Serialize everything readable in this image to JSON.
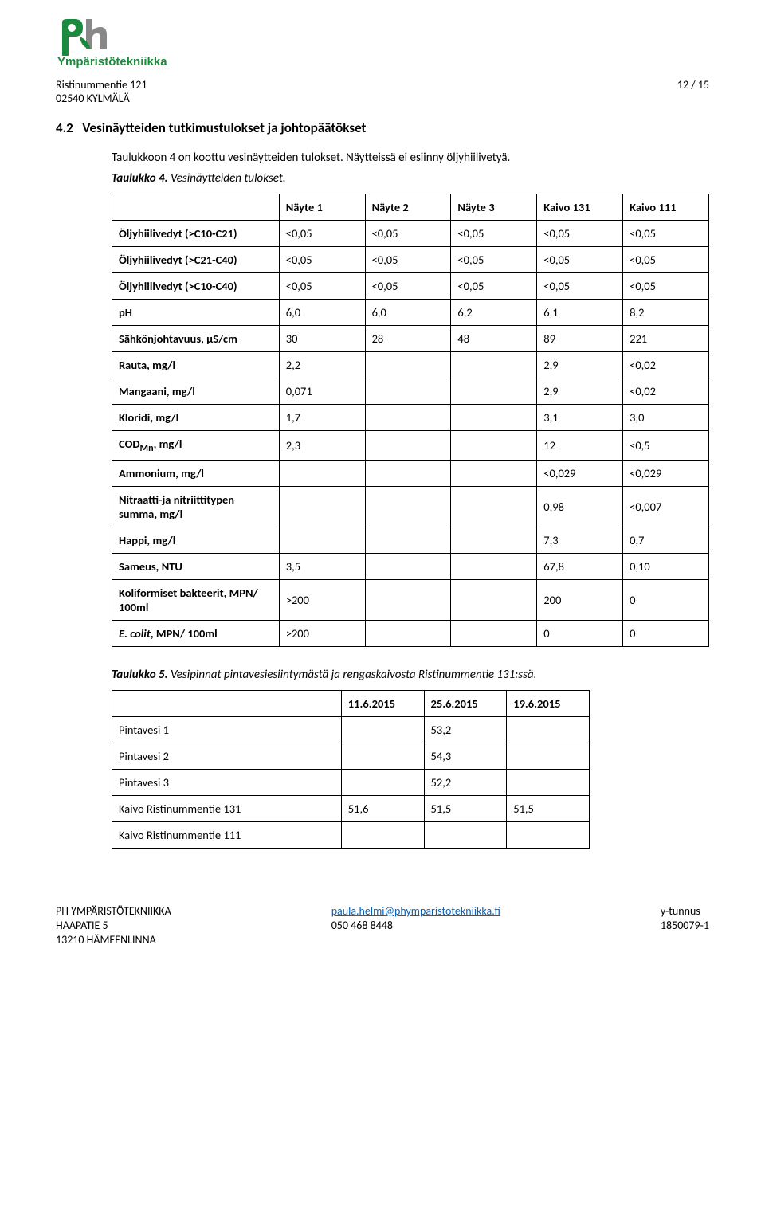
{
  "header": {
    "address_line1": "Ristinummentie 121",
    "address_line2": "02540 KYLMÄLÄ",
    "page_num": "12 / 15"
  },
  "logo": {
    "p_color": "#1a8a3c",
    "h_color": "#888888",
    "sub_text": "Ympäristötekniikka",
    "sub_color": "#1a8a3c"
  },
  "section": {
    "number": "4.2",
    "title": "Vesinäytteiden tutkimustulokset ja johtopäätökset"
  },
  "intro": {
    "line1": "Taulukkoon 4 on koottu vesinäytteiden tulokset. Näytteissä ei esiinny öljyhiilivetyä."
  },
  "table4": {
    "caption_label": "Taulukko 4.",
    "caption_text": " Vesinäytteiden tulokset.",
    "headers": [
      "",
      "Näyte 1",
      "Näyte 2",
      "Näyte 3",
      "Kaivo 131",
      "Kaivo 111"
    ],
    "rows": [
      {
        "label": "Öljyhiilivedyt (>C10-C21)",
        "cells": [
          "<0,05",
          "<0,05",
          "<0,05",
          "<0,05",
          "<0,05"
        ]
      },
      {
        "label": "Öljyhiilivedyt (>C21-C40)",
        "cells": [
          "<0,05",
          "<0,05",
          "<0,05",
          "<0,05",
          "<0,05"
        ]
      },
      {
        "label": "Öljyhiilivedyt (>C10-C40)",
        "cells": [
          "<0,05",
          "<0,05",
          "<0,05",
          "<0,05",
          "<0,05"
        ]
      },
      {
        "label": "pH",
        "cells": [
          "6,0",
          "6,0",
          "6,2",
          "6,1",
          "8,2"
        ]
      },
      {
        "label": "Sähkönjohtavuus, µS/cm",
        "cells": [
          "30",
          "28",
          "48",
          "89",
          "221"
        ]
      },
      {
        "label": "Rauta, mg/l",
        "cells": [
          "2,2",
          "",
          "",
          "2,9",
          "<0,02"
        ]
      },
      {
        "label": "Mangaani, mg/l",
        "cells": [
          "0,071",
          "",
          "",
          "2,9",
          "<0,02"
        ]
      },
      {
        "label": "Kloridi, mg/l",
        "cells": [
          "1,7",
          "",
          "",
          "3,1",
          "3,0"
        ]
      },
      {
        "label": "CODMn, mg/l",
        "sub": "Mn",
        "cells": [
          "2,3",
          "",
          "",
          "12",
          "<0,5"
        ]
      },
      {
        "label": "Ammonium, mg/l",
        "cells": [
          "",
          "",
          "",
          "<0,029",
          "<0,029"
        ]
      },
      {
        "label": "Nitraatti-ja nitriittitypen summa, mg/l",
        "cells": [
          "",
          "",
          "",
          "0,98",
          "<0,007"
        ]
      },
      {
        "label": "Happi, mg/l",
        "cells": [
          "",
          "",
          "",
          "7,3",
          "0,7"
        ]
      },
      {
        "label": "Sameus, NTU",
        "cells": [
          "3,5",
          "",
          "",
          "67,8",
          "0,10"
        ]
      },
      {
        "label": "Koliformiset bakteerit, MPN/ 100ml",
        "cells": [
          ">200",
          "",
          "",
          "200",
          "0"
        ]
      },
      {
        "label": "E. colit, MPN/ 100ml",
        "italic_prefix": "E. colit",
        "suffix": ", MPN/ 100ml",
        "cells": [
          ">200",
          "",
          "",
          "0",
          "0"
        ]
      }
    ]
  },
  "table5": {
    "caption_label": "Taulukko 5.",
    "caption_text": " Vesipinnat pintavesiesiintymästä ja rengaskaivosta Ristinummentie 131:ssä.",
    "headers": [
      "",
      "11.6.2015",
      "25.6.2015",
      "19.6.2015"
    ],
    "rows": [
      {
        "label": "Pintavesi 1",
        "cells": [
          "",
          "53,2",
          ""
        ]
      },
      {
        "label": "Pintavesi 2",
        "cells": [
          "",
          "54,3",
          ""
        ]
      },
      {
        "label": "Pintavesi 3",
        "cells": [
          "",
          "52,2",
          ""
        ]
      },
      {
        "label": "Kaivo Ristinummentie 131",
        "cells": [
          "51,6",
          "51,5",
          "51,5"
        ]
      },
      {
        "label": "Kaivo Ristinummentie 111",
        "cells": [
          "",
          "",
          ""
        ]
      }
    ]
  },
  "footer": {
    "col1_line1": "PH YMPÄRISTÖTEKNIIKKA",
    "col1_line2": "HAAPATIE 5",
    "col1_line3": "13210 HÄMEENLINNA",
    "col2_email": "paula.helmi@phymparistotekniikka.fi",
    "col2_phone": "050 468 8448",
    "col3_line1": "y-tunnus",
    "col3_line2": "1850079-1"
  }
}
